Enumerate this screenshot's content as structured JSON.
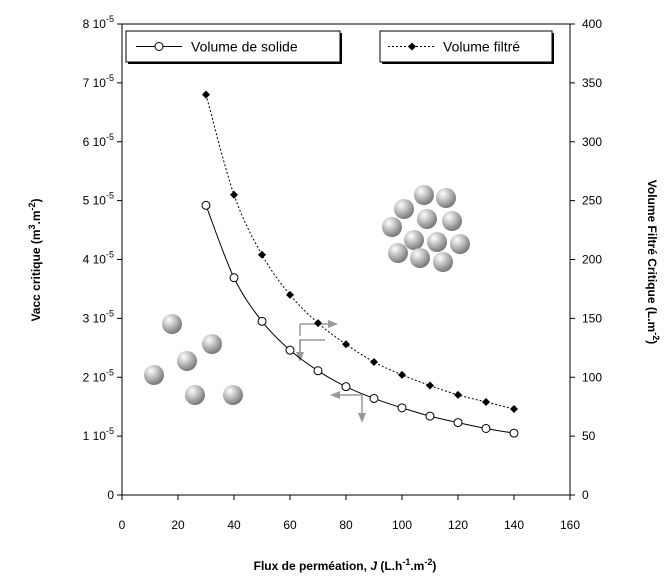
{
  "chart_data": {
    "type": "scatter",
    "title": "",
    "xlabel": "Flux de perméation, J (L.h-1.m-2)",
    "ylabel_left": "Vacc critique (m3.m-2)",
    "ylabel_right": "Volume Filtré Critique (L.m-2)",
    "xlim": [
      0,
      160
    ],
    "ylim_left": [
      0,
      8e-05
    ],
    "ylim_right": [
      0,
      400
    ],
    "x_ticks": [
      0,
      20,
      40,
      60,
      80,
      100,
      120,
      140,
      160
    ],
    "y_left_ticks": [
      {
        "value": 0,
        "mant": "0",
        "exp": ""
      },
      {
        "value": 1e-05,
        "mant": "1 10",
        "exp": "-5"
      },
      {
        "value": 2e-05,
        "mant": "2 10",
        "exp": "-5"
      },
      {
        "value": 3e-05,
        "mant": "3 10",
        "exp": "-5"
      },
      {
        "value": 4e-05,
        "mant": "4 10",
        "exp": "-5"
      },
      {
        "value": 5e-05,
        "mant": "5 10",
        "exp": "-5"
      },
      {
        "value": 6e-05,
        "mant": "6 10",
        "exp": "-5"
      },
      {
        "value": 7e-05,
        "mant": "7 10",
        "exp": "-5"
      },
      {
        "value": 8e-05,
        "mant": "8 10",
        "exp": "-5"
      }
    ],
    "y_right_ticks": [
      0,
      50,
      100,
      150,
      200,
      250,
      300,
      350,
      400
    ],
    "grid": false,
    "legend_placement": "top",
    "series": [
      {
        "name": "Volume de solide",
        "axis": "left",
        "marker": "open-circle",
        "line": "solid",
        "x": [
          30,
          40,
          50,
          60,
          70,
          80,
          90,
          100,
          110,
          120,
          130,
          140
        ],
        "y": [
          4.92e-05,
          3.69e-05,
          2.95e-05,
          2.46e-05,
          2.11e-05,
          1.84e-05,
          1.64e-05,
          1.48e-05,
          1.34e-05,
          1.23e-05,
          1.13e-05,
          1.05e-05
        ]
      },
      {
        "name": "Volume filtré",
        "axis": "right",
        "marker": "filled-diamond",
        "line": "dotted",
        "x": [
          30,
          40,
          50,
          60,
          70,
          80,
          90,
          100,
          110,
          120,
          130,
          140
        ],
        "y": [
          340,
          255,
          204,
          170,
          146,
          128,
          113,
          102,
          93,
          85,
          79,
          73
        ]
      }
    ],
    "colors": {
      "axis": "#000000",
      "marker_fill": "#000000",
      "arrow": "#999999",
      "sphere_light": "#ffffff",
      "sphere_dark": "#7a7a7a"
    }
  }
}
